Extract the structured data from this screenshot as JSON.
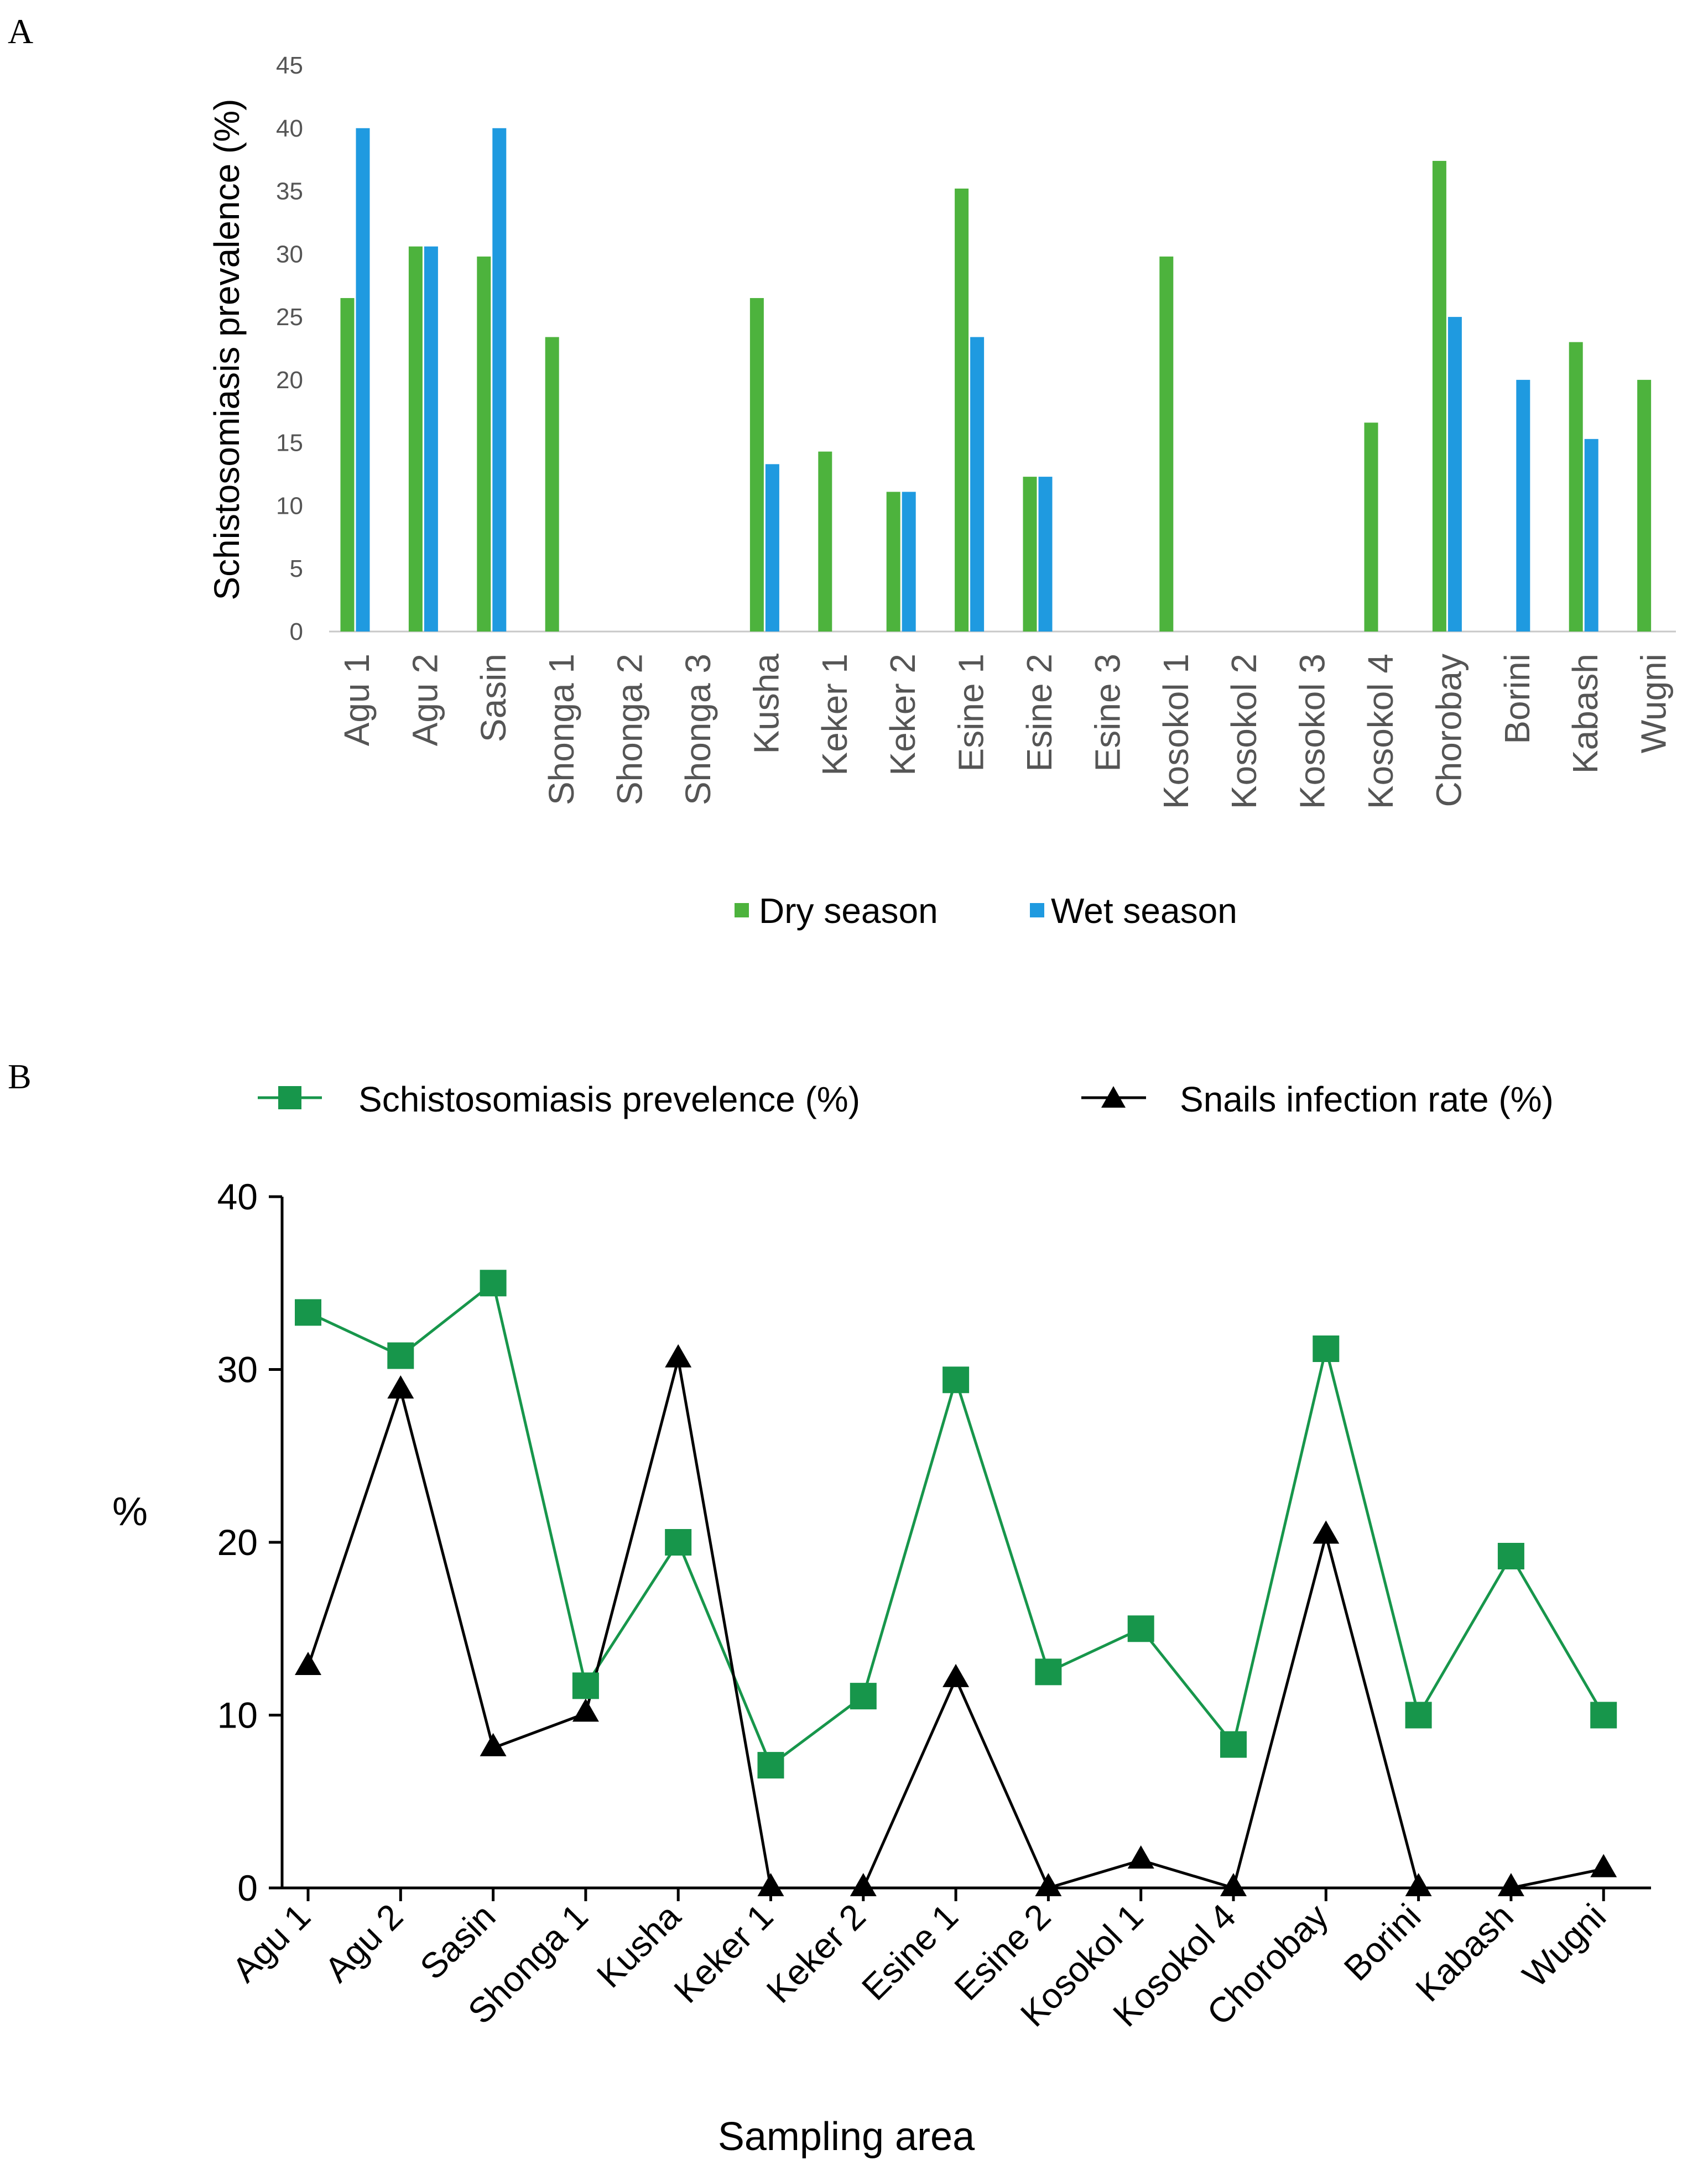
{
  "colors": {
    "dry": "#4db33d",
    "wet": "#1f9ae0",
    "prevalence": "#17964b",
    "snail": "#000000",
    "axis": "#c8c8c8"
  },
  "chart_data": [
    {
      "panel_label": "A",
      "type": "bar",
      "ylabel": "Schistosomiasis prevalence (%)",
      "ylim": [
        0,
        45
      ],
      "yticks": [
        0,
        5,
        10,
        15,
        20,
        25,
        30,
        35,
        40,
        45
      ],
      "categories": [
        "Agu 1",
        "Agu 2",
        "Sasin",
        "Shonga 1",
        "Shonga 2",
        "Shonga 3",
        "Kusha",
        "Keker 1",
        "Keker 2",
        "Esine 1",
        "Esine 2",
        "Esine 3",
        "Kosokol 1",
        "Kosokol 2",
        "Kosokol 3",
        "Kosokol 4",
        "Chorobay",
        "Borini",
        "Kabash",
        "Wugni"
      ],
      "series": [
        {
          "name": "Dry season",
          "values": [
            26.5,
            30.6,
            29.8,
            23.4,
            0,
            0,
            26.5,
            14.3,
            11.1,
            35.2,
            12.3,
            0,
            29.8,
            0,
            0,
            16.6,
            37.4,
            0,
            23.0,
            20.0
          ]
        },
        {
          "name": "Wet season",
          "values": [
            40.0,
            30.6,
            40.0,
            0,
            0,
            0,
            13.3,
            0,
            11.1,
            23.4,
            12.3,
            0,
            0,
            0,
            0,
            0,
            25.0,
            20.0,
            15.3,
            0
          ]
        }
      ],
      "legend_position": "bottom-center"
    },
    {
      "panel_label": "B",
      "type": "line",
      "xlabel": "Sampling area",
      "ylabel": "%",
      "ylim": [
        0,
        40
      ],
      "yticks": [
        0,
        10,
        20,
        30,
        40
      ],
      "categories": [
        "Agu 1",
        "Agu 2",
        "Sasin",
        "Shonga 1",
        "Kusha",
        "Keker 1",
        "Keker 2",
        "Esine 1",
        "Esine 2",
        "Kosokol 1",
        "Kosokol 4",
        "Chorobay",
        "Borini",
        "Kabash",
        "Wugni"
      ],
      "series": [
        {
          "name": "Schistosomiasis prevelence (%)",
          "marker": "square",
          "values": [
            33.3,
            30.8,
            35.0,
            11.7,
            20.0,
            7.1,
            11.1,
            29.4,
            12.5,
            15.0,
            8.3,
            31.2,
            10.0,
            19.2,
            10.0
          ]
        },
        {
          "name": "Snails infection rate (%)",
          "marker": "triangle",
          "values": [
            12.8,
            28.8,
            8.1,
            10.1,
            30.6,
            0,
            0,
            12.1,
            0,
            1.6,
            0,
            20.4,
            0,
            0,
            1.1
          ]
        }
      ],
      "legend_position": "top"
    }
  ]
}
